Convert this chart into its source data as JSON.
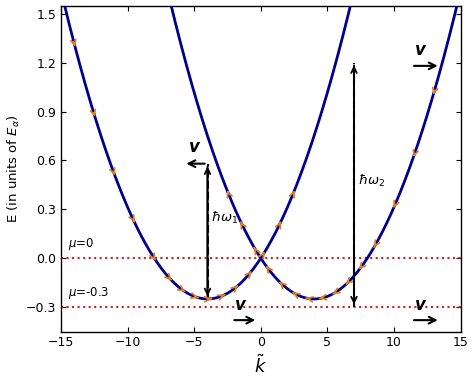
{
  "xlabel": "$\\tilde{k}$",
  "ylabel": "E (in units of $E_{\\alpha}$)",
  "xlim": [
    -15,
    15
  ],
  "ylim": [
    -0.45,
    1.55
  ],
  "yticks": [
    -0.3,
    0.0,
    0.3,
    0.6,
    0.9,
    1.2,
    1.5
  ],
  "xticks": [
    -15,
    -10,
    -5,
    0,
    5,
    10,
    15
  ],
  "curve_color": "#00008B",
  "arrow_color": "#E08020",
  "mu_line_color": "#CC2222",
  "mu0": 0.0,
  "mu03": -0.3,
  "k0": 4.0,
  "c": 0.015625,
  "k_om1": -4.0,
  "k_om2": 7.0
}
